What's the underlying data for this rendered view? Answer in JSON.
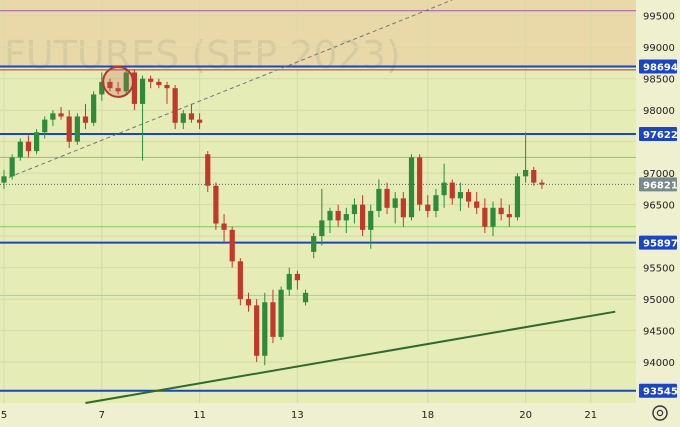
{
  "chart_data": {
    "type": "candlestick",
    "title": "FUTURES (SEP 2023)",
    "ylim": [
      93350,
      99750
    ],
    "y_ticks": [
      94000,
      94500,
      95000,
      95500,
      96000,
      96500,
      97000,
      97500,
      98000,
      98500,
      99000,
      99500
    ],
    "x_ticks": [
      {
        "label": "5",
        "index": 0
      },
      {
        "label": "7",
        "index": 12
      },
      {
        "label": "11",
        "index": 24
      },
      {
        "label": "13",
        "index": 36
      },
      {
        "label": "18",
        "index": 52
      },
      {
        "label": "20",
        "index": 64
      },
      {
        "label": "21",
        "index": 72
      }
    ],
    "last_price": 96821,
    "levels": [
      {
        "value": 98694,
        "color": "#1b45c8",
        "labeled": true
      },
      {
        "value": 98640,
        "color": "#b33",
        "labeled": false
      },
      {
        "value": 97622,
        "color": "#1b45c8",
        "labeled": true
      },
      {
        "value": 95897,
        "color": "#1b45c8",
        "labeled": true
      },
      {
        "value": 93545,
        "color": "#1b45c8",
        "labeled": true
      },
      {
        "value": 99580,
        "color": "#9b59b6",
        "labeled": false
      },
      {
        "value": 97250,
        "color": "#7ccf5a",
        "labeled": false
      },
      {
        "value": 96150,
        "color": "#7ccf5a",
        "labeled": false
      },
      {
        "value": 95060,
        "color": "#8fd3c3",
        "labeled": false
      }
    ],
    "candles": [
      {
        "o": 96850,
        "h": 97050,
        "l": 96750,
        "c": 96950
      },
      {
        "o": 96950,
        "h": 97300,
        "l": 96900,
        "c": 97250
      },
      {
        "o": 97250,
        "h": 97550,
        "l": 97200,
        "c": 97500
      },
      {
        "o": 97500,
        "h": 97600,
        "l": 97250,
        "c": 97350
      },
      {
        "o": 97350,
        "h": 97700,
        "l": 97300,
        "c": 97650
      },
      {
        "o": 97650,
        "h": 97900,
        "l": 97550,
        "c": 97850
      },
      {
        "o": 97850,
        "h": 98000,
        "l": 97750,
        "c": 97950
      },
      {
        "o": 97950,
        "h": 98050,
        "l": 97850,
        "c": 97900
      },
      {
        "o": 97900,
        "h": 98000,
        "l": 97400,
        "c": 97500
      },
      {
        "o": 97500,
        "h": 97950,
        "l": 97450,
        "c": 97900
      },
      {
        "o": 97900,
        "h": 98100,
        "l": 97700,
        "c": 97800
      },
      {
        "o": 97800,
        "h": 98300,
        "l": 97750,
        "c": 98250
      },
      {
        "o": 98250,
        "h": 98600,
        "l": 98150,
        "c": 98450
      },
      {
        "o": 98450,
        "h": 98500,
        "l": 98300,
        "c": 98350
      },
      {
        "o": 98350,
        "h": 98450,
        "l": 98250,
        "c": 98300
      },
      {
        "o": 98300,
        "h": 98650,
        "l": 98250,
        "c": 98600
      },
      {
        "o": 98600,
        "h": 98650,
        "l": 98000,
        "c": 98100
      },
      {
        "o": 98100,
        "h": 98550,
        "l": 97200,
        "c": 98500
      },
      {
        "o": 98500,
        "h": 98550,
        "l": 98350,
        "c": 98450
      },
      {
        "o": 98450,
        "h": 98500,
        "l": 98350,
        "c": 98400
      },
      {
        "o": 98400,
        "h": 98450,
        "l": 98100,
        "c": 98350
      },
      {
        "o": 98350,
        "h": 98400,
        "l": 97700,
        "c": 97800
      },
      {
        "o": 97800,
        "h": 98000,
        "l": 97700,
        "c": 97950
      },
      {
        "o": 97950,
        "h": 98100,
        "l": 97800,
        "c": 97850
      },
      {
        "o": 97850,
        "h": 97950,
        "l": 97700,
        "c": 97800
      },
      {
        "o": 97300,
        "h": 97350,
        "l": 96700,
        "c": 96800
      },
      {
        "o": 96800,
        "h": 96850,
        "l": 96100,
        "c": 96200
      },
      {
        "o": 96200,
        "h": 96350,
        "l": 95900,
        "c": 96100
      },
      {
        "o": 96100,
        "h": 96150,
        "l": 95500,
        "c": 95600
      },
      {
        "o": 95600,
        "h": 95650,
        "l": 94900,
        "c": 95000
      },
      {
        "o": 95000,
        "h": 95100,
        "l": 94800,
        "c": 94900
      },
      {
        "o": 94900,
        "h": 95000,
        "l": 94000,
        "c": 94100
      },
      {
        "o": 94100,
        "h": 95100,
        "l": 93950,
        "c": 94950
      },
      {
        "o": 94950,
        "h": 95150,
        "l": 94300,
        "c": 94400
      },
      {
        "o": 94400,
        "h": 95200,
        "l": 94350,
        "c": 95150
      },
      {
        "o": 95150,
        "h": 95500,
        "l": 95050,
        "c": 95400
      },
      {
        "o": 95400,
        "h": 95450,
        "l": 95150,
        "c": 95300
      },
      {
        "o": 94950,
        "h": 95150,
        "l": 94900,
        "c": 95100
      },
      {
        "o": 95750,
        "h": 96050,
        "l": 95650,
        "c": 96000
      },
      {
        "o": 96000,
        "h": 96750,
        "l": 95850,
        "c": 96250
      },
      {
        "o": 96250,
        "h": 96450,
        "l": 96050,
        "c": 96400
      },
      {
        "o": 96400,
        "h": 96500,
        "l": 96150,
        "c": 96250
      },
      {
        "o": 96250,
        "h": 96450,
        "l": 96050,
        "c": 96350
      },
      {
        "o": 96350,
        "h": 96600,
        "l": 96200,
        "c": 96500
      },
      {
        "o": 96500,
        "h": 96650,
        "l": 96000,
        "c": 96100
      },
      {
        "o": 96100,
        "h": 96500,
        "l": 95800,
        "c": 96400
      },
      {
        "o": 96400,
        "h": 96900,
        "l": 96300,
        "c": 96750
      },
      {
        "o": 96750,
        "h": 96850,
        "l": 96350,
        "c": 96450
      },
      {
        "o": 96450,
        "h": 96700,
        "l": 96200,
        "c": 96600
      },
      {
        "o": 96600,
        "h": 96700,
        "l": 96150,
        "c": 96300
      },
      {
        "o": 96300,
        "h": 97300,
        "l": 96250,
        "c": 97250
      },
      {
        "o": 97250,
        "h": 97300,
        "l": 96400,
        "c": 96500
      },
      {
        "o": 96500,
        "h": 96650,
        "l": 96300,
        "c": 96400
      },
      {
        "o": 96400,
        "h": 96750,
        "l": 96300,
        "c": 96650
      },
      {
        "o": 96650,
        "h": 97150,
        "l": 96450,
        "c": 96850
      },
      {
        "o": 96850,
        "h": 96900,
        "l": 96500,
        "c": 96600
      },
      {
        "o": 96600,
        "h": 96850,
        "l": 96400,
        "c": 96700
      },
      {
        "o": 96700,
        "h": 96750,
        "l": 96450,
        "c": 96550
      },
      {
        "o": 96550,
        "h": 96700,
        "l": 96350,
        "c": 96450
      },
      {
        "o": 96450,
        "h": 96600,
        "l": 96050,
        "c": 96150
      },
      {
        "o": 96150,
        "h": 96550,
        "l": 96000,
        "c": 96450
      },
      {
        "o": 96450,
        "h": 96600,
        "l": 96250,
        "c": 96350
      },
      {
        "o": 96350,
        "h": 96500,
        "l": 96150,
        "c": 96300
      },
      {
        "o": 96300,
        "h": 97000,
        "l": 96250,
        "c": 96950
      },
      {
        "o": 96950,
        "h": 97650,
        "l": 96850,
        "c": 97050
      },
      {
        "o": 97050,
        "h": 97100,
        "l": 96800,
        "c": 96850
      },
      {
        "o": 96850,
        "h": 96900,
        "l": 96750,
        "c": 96821
      }
    ],
    "annotations": [
      {
        "type": "trendline",
        "from": {
          "index": 10,
          "value": 93350
        },
        "to": {
          "index": 75,
          "value": 94800
        },
        "color": "#2e6b2e"
      },
      {
        "type": "trendline_dashed",
        "from": {
          "index": -1,
          "value": 96850
        },
        "to": {
          "index": 55,
          "value": 99750
        },
        "color": "#777"
      },
      {
        "type": "circle",
        "index": 14,
        "value": 98450,
        "color": "#b33"
      }
    ]
  },
  "ui": {
    "settings_icon": "gear-icon"
  }
}
